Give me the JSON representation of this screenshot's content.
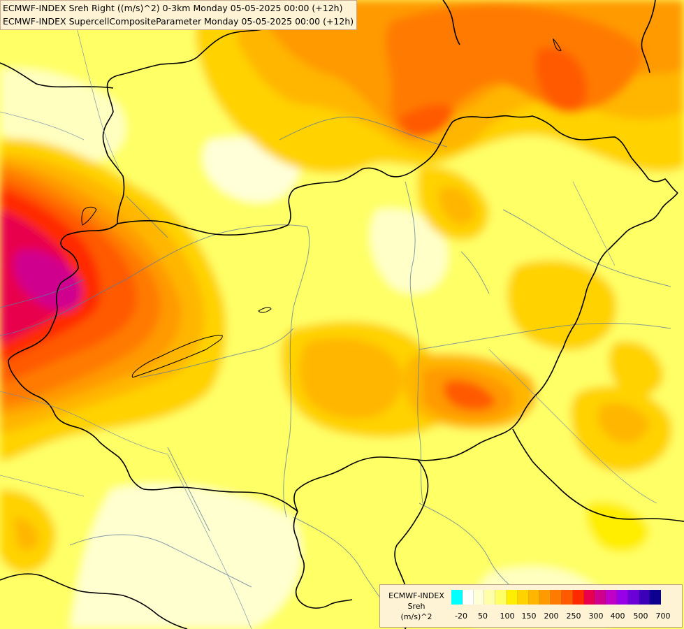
{
  "header": {
    "title_line1": "ECMWF-INDEX Sreh Right ((m/s)^2) 0-3km Monday 05-05-2025 00:00 (+12h)",
    "title_line2": "ECMWF-INDEX SupercellCompositeParameter Monday 05-05-2025 00:00 (+12h)"
  },
  "legend": {
    "line1": "ECMWF-INDEX",
    "line2": "Sreh",
    "line3": "(m/s)^2",
    "ticks": [
      "-20",
      "50",
      "100",
      "150",
      "200",
      "250",
      "300",
      "400",
      "500",
      "700"
    ],
    "colors": [
      "#00ffff",
      "#ffffff",
      "#ffffd8",
      "#ffffa8",
      "#ffff66",
      "#ffee00",
      "#ffd200",
      "#ffb600",
      "#ff9a00",
      "#ff7a00",
      "#ff5a00",
      "#ff2a00",
      "#e8004e",
      "#d0008e",
      "#c000c8",
      "#9800e8",
      "#6c00d8",
      "#3c00b8",
      "#0c0090"
    ]
  },
  "colors": {
    "background": "#ffff66",
    "border": "#000000",
    "river": "#5a7a9a"
  }
}
